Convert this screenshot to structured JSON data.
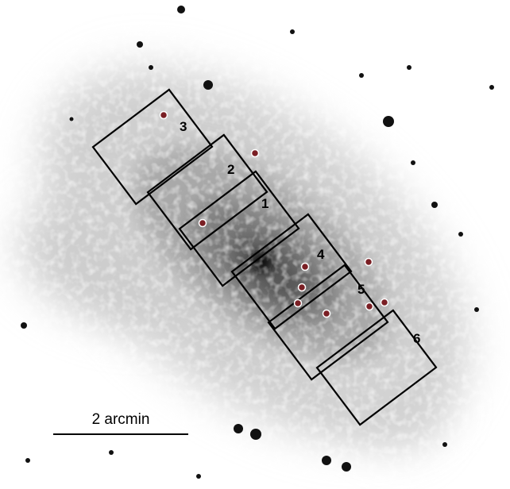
{
  "image": {
    "kind": "x-ray sky image",
    "background_color": "#ffffff",
    "emission_color": "#3a3a3a",
    "box_color": "#000000",
    "marker_color": "#7a1f24",
    "marker_ring_color": "#ffffff"
  },
  "regions": [
    {
      "label": "1",
      "level": "brightest"
    },
    {
      "label": "2",
      "level": "bright"
    },
    {
      "label": "3",
      "level": "moderate"
    },
    {
      "label": "4",
      "level": "bright"
    },
    {
      "label": "5",
      "level": "moderate"
    },
    {
      "label": "6",
      "level": "faint"
    }
  ],
  "scale_bar": {
    "label": "2 arcmin"
  }
}
